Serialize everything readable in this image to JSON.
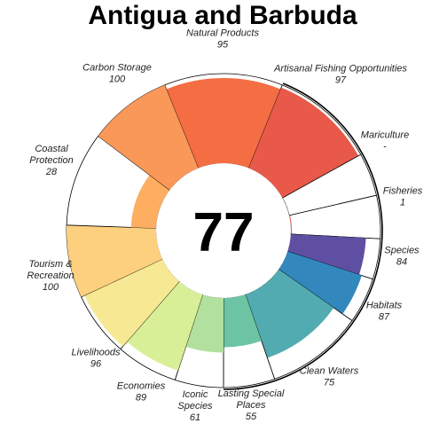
{
  "chart_data": {
    "type": "flower",
    "title": "Antigua and Barbuda",
    "center_score": "77",
    "max_value": 100,
    "petals": [
      {
        "name": "Natural Products",
        "value": 95,
        "label": "95",
        "color": "#F46D43"
      },
      {
        "name": "Artisanal Fishing Opportunities",
        "value": 97,
        "label": "97",
        "color": "#E8594A"
      },
      {
        "name": "Mariculture",
        "value": null,
        "label": "-",
        "color": "#E8594A"
      },
      {
        "name": "Fisheries",
        "value": 1,
        "label": "1",
        "color": "#E8594A"
      },
      {
        "name": "Species",
        "value": 84,
        "label": "84",
        "color": "#5E4FA2"
      },
      {
        "name": "Habitats",
        "value": 87,
        "label": "87",
        "color": "#3288BD"
      },
      {
        "name": "Clean Waters",
        "value": 75,
        "label": "75",
        "color": "#52ABB0"
      },
      {
        "name": "Lasting Special Places",
        "value": 55,
        "label": "55",
        "color": "#6CC4A4"
      },
      {
        "name": "Iconic Species",
        "value": 61,
        "label": "61",
        "color": "#B2E09E"
      },
      {
        "name": "Economies",
        "value": 89,
        "label": "89",
        "color": "#D8EF97"
      },
      {
        "name": "Livelihoods",
        "value": 96,
        "label": "96",
        "color": "#F7E893"
      },
      {
        "name": "Tourism & Recreation",
        "value": 100,
        "label": "100",
        "color": "#FDD07F"
      },
      {
        "name": "Coastal Protection",
        "value": 28,
        "label": "28",
        "color": "#FDAE61"
      },
      {
        "name": "Carbon Storage",
        "value": 100,
        "label": "100",
        "color": "#F99858"
      }
    ]
  }
}
